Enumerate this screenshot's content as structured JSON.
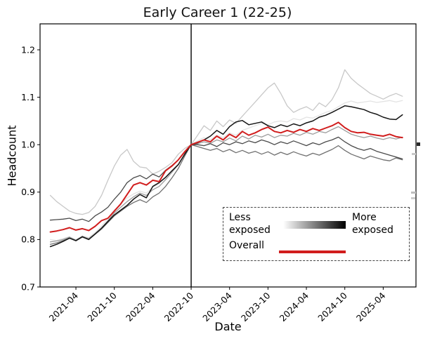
{
  "chart_data": {
    "type": "line",
    "title": "Early Career 1 (22-25)",
    "xlabel": "Date",
    "ylabel": "Headcount",
    "ylim": [
      0.7,
      1.2547
    ],
    "grid": false,
    "yticks": [
      0.7,
      0.8,
      0.9,
      1.0,
      1.1,
      1.2
    ],
    "xtick_labels": [
      "2021-04",
      "2021-10",
      "2022-04",
      "2022-10",
      "2023-04",
      "2023-10",
      "2024-04",
      "2024-10",
      "2025-04"
    ],
    "xtick_month_indices": [
      4,
      10,
      16,
      22,
      28,
      34,
      40,
      46,
      52
    ],
    "vline_month": "2022-10",
    "vline_month_index": 22,
    "x_months": [
      "2020-12",
      "2021-01",
      "2021-02",
      "2021-03",
      "2021-04",
      "2021-05",
      "2021-06",
      "2021-07",
      "2021-08",
      "2021-09",
      "2021-10",
      "2021-11",
      "2021-12",
      "2022-01",
      "2022-02",
      "2022-03",
      "2022-04",
      "2022-05",
      "2022-06",
      "2022-07",
      "2022-08",
      "2022-09",
      "2022-10",
      "2022-11",
      "2022-12",
      "2023-01",
      "2023-02",
      "2023-03",
      "2023-04",
      "2023-05",
      "2023-06",
      "2023-07",
      "2023-08",
      "2023-09",
      "2023-10",
      "2023-11",
      "2023-12",
      "2024-01",
      "2024-02",
      "2024-03",
      "2024-04",
      "2024-05",
      "2024-06",
      "2024-07",
      "2024-08",
      "2024-09",
      "2024-10",
      "2024-11",
      "2024-12",
      "2025-01",
      "2025-02",
      "2025-03",
      "2025-04",
      "2025-05",
      "2025-06",
      "2025-07"
    ],
    "series": [
      {
        "name": "exposure-group-1-least-exposed",
        "color": "#e3e3e3",
        "width": 1.3,
        "values": [
          0.8,
          0.798,
          0.802,
          0.806,
          0.8,
          0.808,
          0.804,
          0.815,
          0.828,
          0.845,
          0.862,
          0.875,
          0.888,
          0.896,
          0.902,
          0.898,
          0.91,
          0.918,
          0.93,
          0.945,
          0.96,
          0.98,
          1.0,
          1.008,
          1.015,
          1.01,
          1.02,
          1.015,
          1.025,
          1.02,
          1.03,
          1.035,
          1.04,
          1.045,
          1.042,
          1.048,
          1.05,
          1.048,
          1.055,
          1.052,
          1.058,
          1.056,
          1.062,
          1.068,
          1.072,
          1.08,
          1.088,
          1.092,
          1.088,
          1.09,
          1.092,
          1.089,
          1.091,
          1.093,
          1.09,
          1.093
        ]
      },
      {
        "name": "exposure-group-2",
        "color": "#c8c8c8",
        "width": 1.3,
        "values": [
          0.893,
          0.88,
          0.87,
          0.86,
          0.855,
          0.853,
          0.857,
          0.87,
          0.893,
          0.925,
          0.955,
          0.978,
          0.99,
          0.965,
          0.953,
          0.951,
          0.938,
          0.944,
          0.952,
          0.962,
          0.98,
          0.992,
          1.0,
          1.02,
          1.04,
          1.03,
          1.05,
          1.038,
          1.052,
          1.045,
          1.06,
          1.075,
          1.09,
          1.105,
          1.12,
          1.13,
          1.108,
          1.082,
          1.068,
          1.075,
          1.08,
          1.072,
          1.088,
          1.08,
          1.095,
          1.12,
          1.158,
          1.14,
          1.128,
          1.118,
          1.108,
          1.102,
          1.096,
          1.103,
          1.108,
          1.102
        ]
      },
      {
        "name": "exposure-group-3",
        "color": "#9c9c9c",
        "width": 1.3,
        "values": [
          0.795,
          0.797,
          0.8,
          0.805,
          0.798,
          0.806,
          0.802,
          0.812,
          0.824,
          0.84,
          0.856,
          0.868,
          0.88,
          0.89,
          0.898,
          0.893,
          0.905,
          0.912,
          0.926,
          0.942,
          0.958,
          0.98,
          1.0,
          1.002,
          1.006,
          1.003,
          1.01,
          1.006,
          1.014,
          1.008,
          1.018,
          1.012,
          1.02,
          1.016,
          1.022,
          1.015,
          1.02,
          1.018,
          1.024,
          1.02,
          1.026,
          1.022,
          1.028,
          1.025,
          1.032,
          1.038,
          1.03,
          1.022,
          1.018,
          1.015,
          1.018,
          1.014,
          1.011,
          1.015,
          1.012,
          1.016
        ]
      },
      {
        "name": "exposure-group-4",
        "color": "#707070",
        "width": 1.3,
        "values": [
          0.79,
          0.793,
          0.798,
          0.803,
          0.797,
          0.805,
          0.8,
          0.811,
          0.822,
          0.836,
          0.85,
          0.86,
          0.87,
          0.878,
          0.884,
          0.878,
          0.89,
          0.898,
          0.912,
          0.93,
          0.95,
          0.976,
          1.0,
          0.996,
          0.992,
          0.988,
          0.992,
          0.985,
          0.99,
          0.983,
          0.988,
          0.982,
          0.986,
          0.98,
          0.985,
          0.978,
          0.984,
          0.979,
          0.985,
          0.98,
          0.976,
          0.982,
          0.978,
          0.984,
          0.99,
          0.998,
          0.988,
          0.98,
          0.975,
          0.97,
          0.976,
          0.972,
          0.968,
          0.966,
          0.972,
          0.968
        ]
      },
      {
        "name": "exposure-group-5",
        "color": "#4a4a4a",
        "width": 1.3,
        "values": [
          0.841,
          0.842,
          0.843,
          0.845,
          0.84,
          0.843,
          0.838,
          0.85,
          0.858,
          0.868,
          0.885,
          0.9,
          0.92,
          0.93,
          0.935,
          0.928,
          0.938,
          0.932,
          0.946,
          0.956,
          0.968,
          0.984,
          1.0,
          1.0,
          0.998,
          1.002,
          0.996,
          1.004,
          1.0,
          1.006,
          1.002,
          1.008,
          1.004,
          1.01,
          1.006,
          1.0,
          1.006,
          1.002,
          1.008,
          1.003,
          0.998,
          1.004,
          1.0,
          1.006,
          1.01,
          1.016,
          1.006,
          0.998,
          0.992,
          0.988,
          0.992,
          0.986,
          0.982,
          0.978,
          0.974,
          0.97
        ]
      },
      {
        "name": "exposure-group-6-most-exposed",
        "color": "#141414",
        "width": 1.5,
        "values": [
          0.785,
          0.79,
          0.796,
          0.803,
          0.798,
          0.806,
          0.8,
          0.812,
          0.824,
          0.838,
          0.852,
          0.862,
          0.872,
          0.885,
          0.895,
          0.888,
          0.912,
          0.92,
          0.931,
          0.945,
          0.958,
          0.98,
          1.0,
          1.004,
          1.01,
          1.018,
          1.03,
          1.022,
          1.038,
          1.048,
          1.051,
          1.042,
          1.045,
          1.048,
          1.04,
          1.036,
          1.042,
          1.038,
          1.044,
          1.04,
          1.046,
          1.05,
          1.058,
          1.062,
          1.068,
          1.075,
          1.082,
          1.08,
          1.077,
          1.074,
          1.068,
          1.064,
          1.058,
          1.054,
          1.053,
          1.063
        ]
      },
      {
        "name": "overall",
        "color": "#d11d1d",
        "width": 2,
        "values": [
          0.816,
          0.818,
          0.821,
          0.825,
          0.82,
          0.823,
          0.819,
          0.828,
          0.84,
          0.845,
          0.86,
          0.875,
          0.895,
          0.915,
          0.92,
          0.915,
          0.925,
          0.922,
          0.945,
          0.955,
          0.968,
          0.985,
          1.0,
          1.005,
          1.01,
          1.006,
          1.018,
          1.01,
          1.022,
          1.015,
          1.028,
          1.02,
          1.025,
          1.032,
          1.037,
          1.028,
          1.025,
          1.03,
          1.026,
          1.032,
          1.028,
          1.034,
          1.03,
          1.035,
          1.04,
          1.047,
          1.036,
          1.028,
          1.025,
          1.026,
          1.022,
          1.02,
          1.018,
          1.022,
          1.017,
          1.015
        ]
      }
    ],
    "legend": {
      "less_label": "Less exposed",
      "more_label": "More exposed",
      "overall_label": "Overall",
      "gradient_from": "#ffffff",
      "gradient_to": "#000000",
      "overall_color": "#d11d1d",
      "position": "lower right"
    }
  }
}
